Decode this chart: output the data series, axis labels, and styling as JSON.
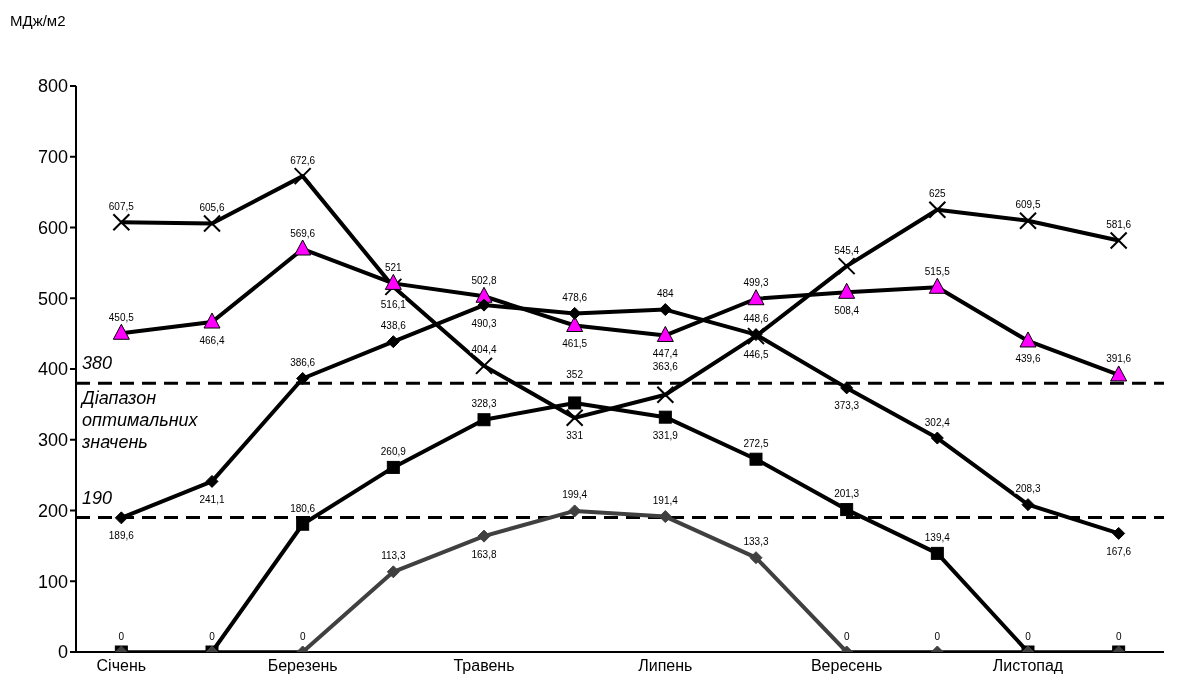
{
  "chart_data": {
    "type": "line",
    "ylabel": "МДж/м2",
    "categories": [
      "Січень",
      null,
      "Березень",
      null,
      "Травень",
      null,
      "Липень",
      null,
      "Вересень",
      null,
      "Листопад",
      null
    ],
    "series": [
      {
        "color": "#000000",
        "marker": "cross",
        "values": [
          607.5,
          605.6,
          672.6,
          516.1,
          404.4,
          331,
          363.6,
          446.5,
          545.4,
          625,
          609.5,
          581.6
        ],
        "value_labels": [
          "607,5",
          "605,6",
          "672,6",
          "516,1",
          "404,4",
          "331",
          "363,6",
          "446,5",
          "545,4",
          "625",
          "609,5",
          "581,6"
        ]
      },
      {
        "color": "#000000",
        "marker": "triangle",
        "colors": [
          "#ff00ff",
          "#ff00ff",
          "#ff00ff",
          "#ff00ff",
          "#ff00ff",
          "#ff00ff",
          "#ff00ff",
          "#ff00ff",
          "#ff00ff",
          "#ff00ff",
          "#ff00ff",
          "#ff00ff"
        ],
        "values": [
          450.5,
          466.4,
          569.6,
          521,
          502.8,
          461.5,
          447.4,
          499.3,
          508.4,
          515.5,
          439.6,
          391.6
        ],
        "value_labels": [
          "450,5",
          "466,4",
          "569,6",
          "521",
          "502,8",
          "461,5",
          "447,4",
          "499,3",
          "508,4",
          "515,5",
          "439,6",
          "391,6"
        ]
      },
      {
        "color": "#000000",
        "marker": "diamond",
        "values": [
          189.6,
          241.1,
          386.6,
          438.6,
          490.3,
          478.6,
          484,
          448.6,
          373.3,
          302.4,
          208.3,
          167.6
        ],
        "value_labels": [
          "189,6",
          "241,1",
          "386,6",
          "438,6",
          "490,3",
          "478,6",
          "484",
          "448,6",
          "373,3",
          "302,4",
          "208,3",
          "167,6"
        ]
      },
      {
        "color": "#000000",
        "marker": "square",
        "values": [
          0,
          0,
          180.6,
          260.9,
          328.3,
          352,
          331.9,
          272.5,
          201.3,
          139.4,
          0,
          0
        ],
        "value_labels": [
          "0",
          "0",
          "180,6",
          "260,9",
          "328,3",
          "352",
          "331,9",
          "272,5",
          "201,3",
          "139,4",
          "0",
          "0"
        ]
      },
      {
        "color": "#404040",
        "marker": "diamond",
        "values": [
          0,
          0,
          0,
          113.3,
          163.8,
          199.4,
          191.4,
          133.3,
          0,
          0,
          0,
          0
        ],
        "value_labels": [
          null,
          null,
          "0",
          "113,3",
          "163,8",
          "199,4",
          "191,4",
          "133,3",
          "0",
          "0",
          null,
          null
        ]
      }
    ],
    "ylim": [
      0,
      800
    ],
    "yticks": [
      0,
      100,
      200,
      300,
      400,
      500,
      600,
      700,
      800
    ],
    "ref_lines": [
      {
        "axis": "y",
        "value": 380,
        "label": "380",
        "color": "#000000",
        "line_style": "dashed"
      },
      {
        "axis": "y",
        "value": 190,
        "label": "190",
        "color": "#000000",
        "line_style": "dashed"
      }
    ],
    "annotations": [
      "Діапазон оптимальних значень"
    ],
    "grid": false,
    "legend": false,
    "line_style": "solid"
  }
}
